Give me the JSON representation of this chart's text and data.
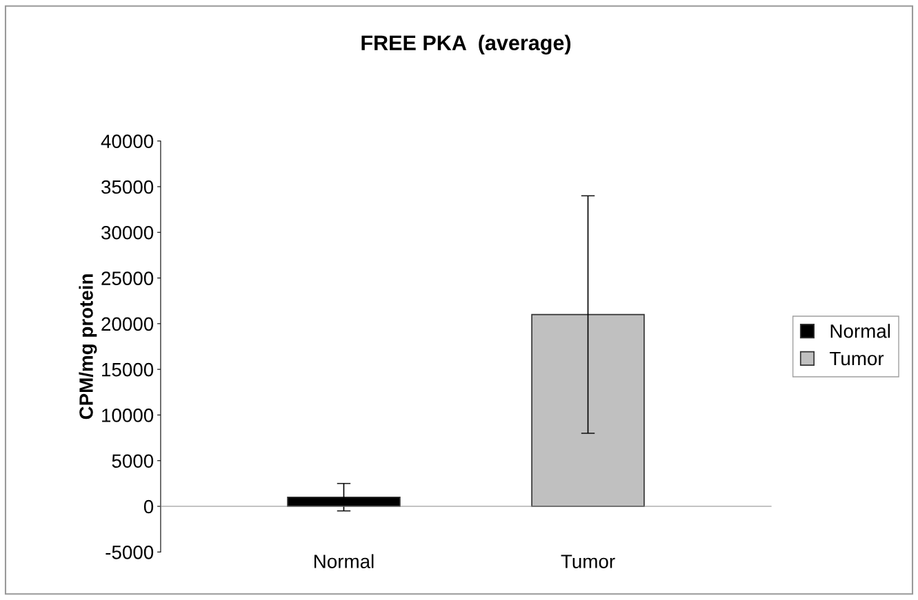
{
  "chart_data": {
    "type": "bar",
    "title": "FREE PKA  (average)",
    "ylabel": "CPM/mg protein",
    "categories": [
      "Normal",
      "Tumor"
    ],
    "series": [
      {
        "name": "Normal",
        "color": "#000000",
        "values": [
          1000,
          null
        ],
        "errors": [
          1500,
          null
        ]
      },
      {
        "name": "Tumor",
        "color": "#c0c0c0",
        "values": [
          null,
          21000
        ],
        "errors": [
          null,
          13000
        ]
      }
    ],
    "ylim": [
      -5000,
      40000
    ],
    "yticks": [
      -5000,
      0,
      5000,
      10000,
      15000,
      20000,
      25000,
      30000,
      35000,
      40000
    ],
    "legend": "right"
  }
}
